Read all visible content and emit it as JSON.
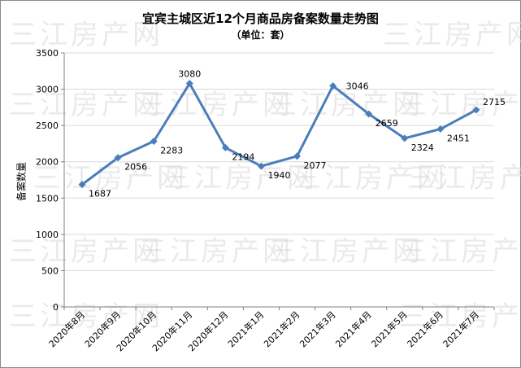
{
  "chart_data": {
    "type": "line",
    "title": "宜宾主城区近12个月商品房备案数量走势图",
    "subtitle": "（单位：套）",
    "ylabel": "备案数量",
    "xlabel": "",
    "categories": [
      "2020年8月",
      "2020年9月",
      "2020年10月",
      "2020年11月",
      "2020年12月",
      "2021年1月",
      "2021年2月",
      "2021年3月",
      "2021年4月",
      "2021年5月",
      "2021年6月",
      "2021年7月"
    ],
    "series": [
      {
        "values": [
          1687,
          2056,
          2283,
          3080,
          2194,
          1940,
          2077,
          3046,
          2659,
          2324,
          2451,
          2715
        ]
      }
    ],
    "ylim": [
      0,
      3500
    ],
    "yticks": [
      0,
      500,
      1000,
      1500,
      2000,
      2500,
      3000,
      3500
    ],
    "grid": true,
    "legend": "none",
    "line_color": "#4a7ebb",
    "grid_color": "#d9d9d9"
  },
  "watermark": "三江房产网"
}
